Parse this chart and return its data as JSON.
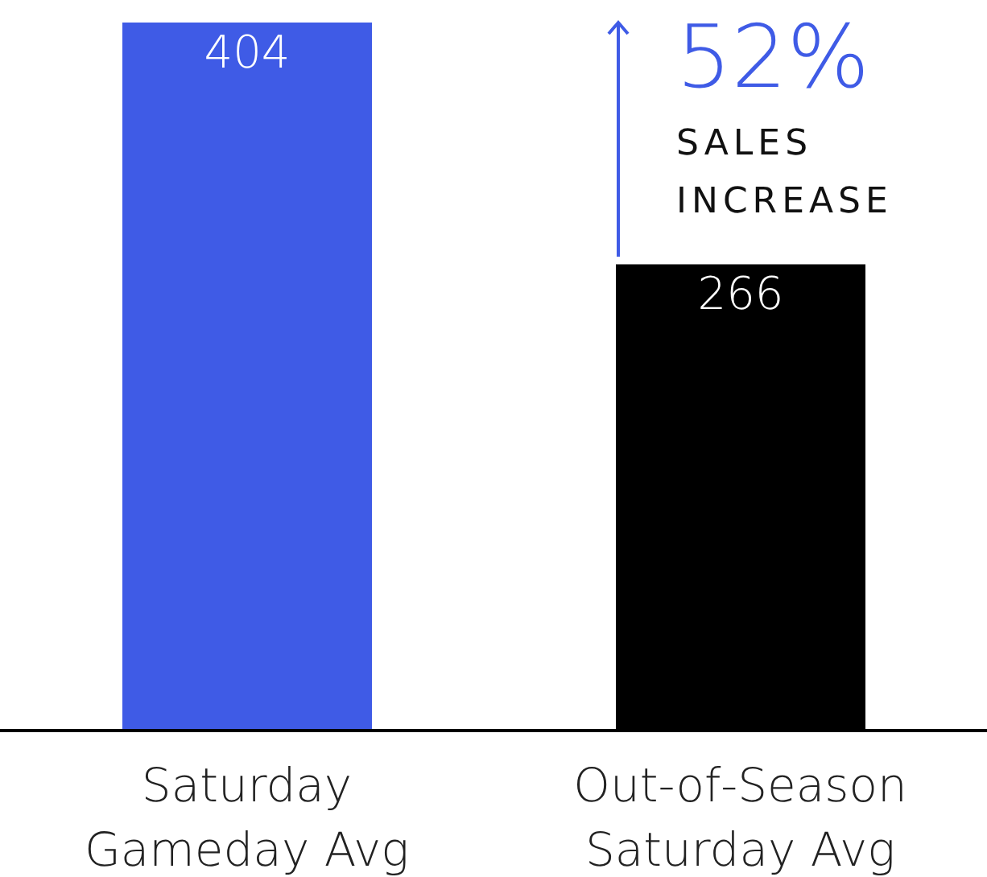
{
  "chart_data": {
    "type": "bar",
    "categories": [
      "Saturday Gameday Avg",
      "Out-of-Season Saturday Avg"
    ],
    "values": [
      404,
      266
    ],
    "colors": [
      "#3f5be6",
      "#000000"
    ],
    "data_labels": true,
    "annotations": [
      "52%",
      "SALES INCREASE"
    ]
  }
}
